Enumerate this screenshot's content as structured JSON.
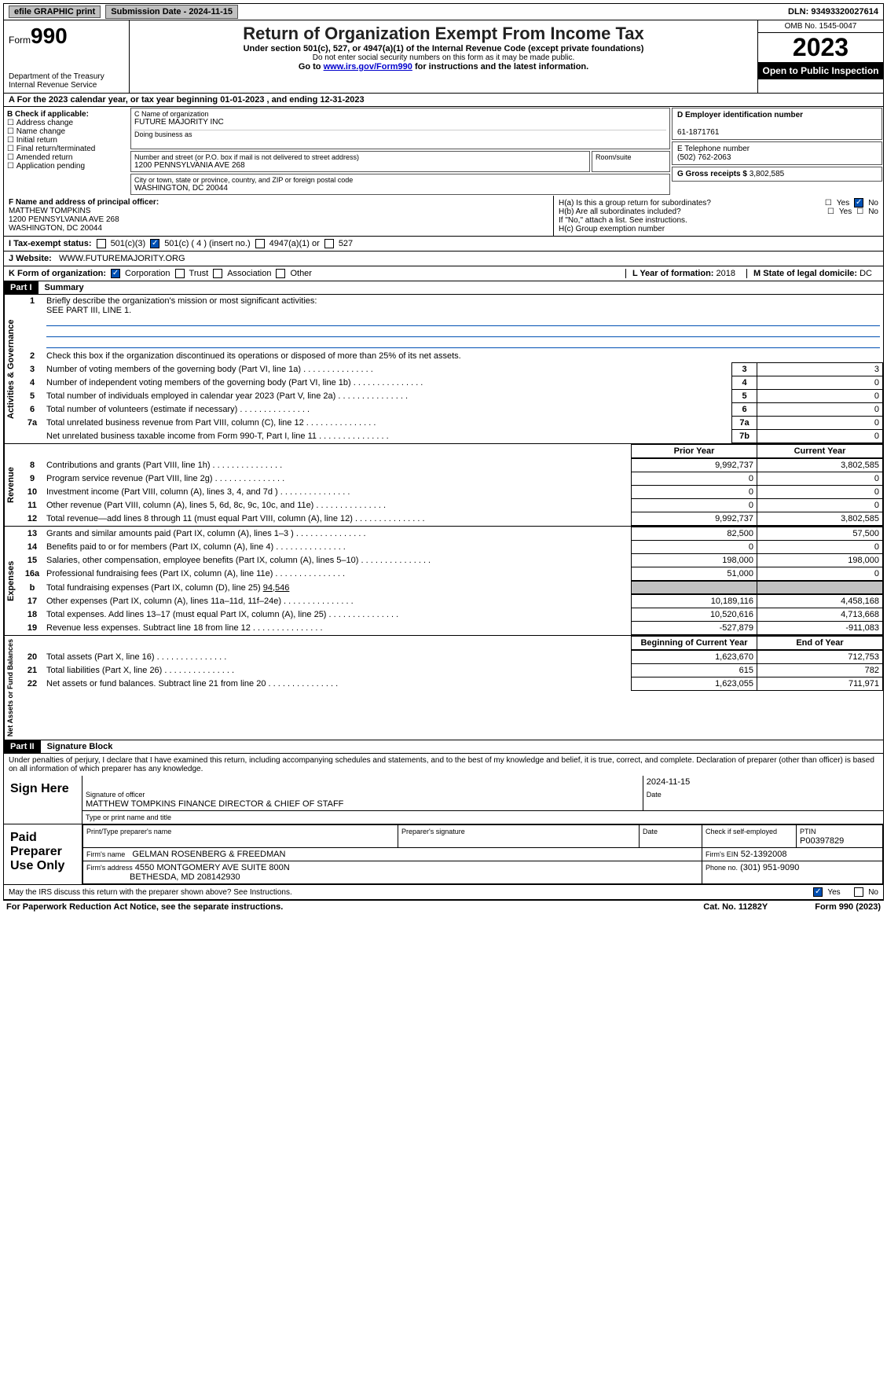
{
  "topbar": {
    "efile_label": "efile GRAPHIC print",
    "submission_label": "Submission Date - 2024-11-15",
    "dln_label": "DLN: 93493320027614"
  },
  "header": {
    "form_prefix": "Form",
    "form_number": "990",
    "dept": "Department of the Treasury Internal Revenue Service",
    "title": "Return of Organization Exempt From Income Tax",
    "subtitle": "Under section 501(c), 527, or 4947(a)(1) of the Internal Revenue Code (except private foundations)",
    "warn": "Do not enter social security numbers on this form as it may be made public.",
    "goto_prefix": "Go to ",
    "goto_link": "www.irs.gov/Form990",
    "goto_suffix": " for instructions and the latest information.",
    "omb": "OMB No. 1545-0047",
    "year": "2023",
    "openpub": "Open to Public Inspection"
  },
  "a_line": "A  For the 2023 calendar year, or tax year beginning 01-01-2023   , and ending 12-31-2023",
  "b": {
    "label": "B Check if applicable:",
    "items": [
      "Address change",
      "Name change",
      "Initial return",
      "Final return/terminated",
      "Amended return",
      "Application pending"
    ]
  },
  "c": {
    "name_lbl": "C Name of organization",
    "name": "FUTURE MAJORITY INC",
    "dba_lbl": "Doing business as",
    "street_lbl": "Number and street (or P.O. box if mail is not delivered to street address)",
    "room_lbl": "Room/suite",
    "street": "1200 PENNSYLVANIA AVE 268",
    "city_lbl": "City or town, state or province, country, and ZIP or foreign postal code",
    "city": "WASHINGTON, DC  20044"
  },
  "d": {
    "lbl": "D Employer identification number",
    "val": "61-1871761"
  },
  "e": {
    "lbl": "E Telephone number",
    "val": "(502) 762-2063"
  },
  "g": {
    "lbl": "G Gross receipts $",
    "val": "3,802,585"
  },
  "f": {
    "lbl": "F  Name and address of principal officer:",
    "lines": [
      "MATTHEW TOMPKINS",
      "1200 PENNSYLVANIA AVE 268",
      "WASHINGTON, DC  20044"
    ]
  },
  "h": {
    "a_lbl": "H(a)  Is this a group return for subordinates?",
    "b_lbl": "H(b)  Are all subordinates included?",
    "note": "If \"No,\" attach a list. See instructions.",
    "c_lbl": "H(c)  Group exemption number",
    "yes": "Yes",
    "no": "No"
  },
  "i": {
    "lbl": "I   Tax-exempt status:",
    "opts": [
      "501(c)(3)",
      "501(c) ( 4 ) (insert no.)",
      "4947(a)(1) or",
      "527"
    ]
  },
  "j": {
    "lbl": "J   Website:",
    "val": "WWW.FUTUREMAJORITY.ORG"
  },
  "k": {
    "lbl": "K Form of organization:",
    "opts": [
      "Corporation",
      "Trust",
      "Association",
      "Other"
    ]
  },
  "l": {
    "lbl": "L Year of formation:",
    "val": "2018"
  },
  "m": {
    "lbl": "M State of legal domicile:",
    "val": "DC"
  },
  "part1": {
    "hdr": "Part I",
    "title": "Summary",
    "line1_lbl": "Briefly describe the organization's mission or most significant activities:",
    "line1_val": "SEE PART III, LINE 1.",
    "line2": "Check this box      if the organization discontinued its operations or disposed of more than 25% of its net assets.",
    "gov_rows": [
      {
        "n": "3",
        "d": "Number of voting members of the governing body (Part VI, line 1a)",
        "box": "3",
        "v": "3"
      },
      {
        "n": "4",
        "d": "Number of independent voting members of the governing body (Part VI, line 1b)",
        "box": "4",
        "v": "0"
      },
      {
        "n": "5",
        "d": "Total number of individuals employed in calendar year 2023 (Part V, line 2a)",
        "box": "5",
        "v": "0"
      },
      {
        "n": "6",
        "d": "Total number of volunteers (estimate if necessary)",
        "box": "6",
        "v": "0"
      },
      {
        "n": "7a",
        "d": "Total unrelated business revenue from Part VIII, column (C), line 12",
        "box": "7a",
        "v": "0"
      },
      {
        "n": "",
        "d": "Net unrelated business taxable income from Form 990-T, Part I, line 11",
        "box": "7b",
        "v": "0"
      }
    ],
    "col_prior": "Prior Year",
    "col_current": "Current Year",
    "rev_rows": [
      {
        "n": "8",
        "d": "Contributions and grants (Part VIII, line 1h)",
        "p": "9,992,737",
        "c": "3,802,585"
      },
      {
        "n": "9",
        "d": "Program service revenue (Part VIII, line 2g)",
        "p": "0",
        "c": "0"
      },
      {
        "n": "10",
        "d": "Investment income (Part VIII, column (A), lines 3, 4, and 7d )",
        "p": "0",
        "c": "0"
      },
      {
        "n": "11",
        "d": "Other revenue (Part VIII, column (A), lines 5, 6d, 8c, 9c, 10c, and 11e)",
        "p": "0",
        "c": "0"
      },
      {
        "n": "12",
        "d": "Total revenue—add lines 8 through 11 (must equal Part VIII, column (A), line 12)",
        "p": "9,992,737",
        "c": "3,802,585"
      }
    ],
    "exp_rows": [
      {
        "n": "13",
        "d": "Grants and similar amounts paid (Part IX, column (A), lines 1–3 )",
        "p": "82,500",
        "c": "57,500"
      },
      {
        "n": "14",
        "d": "Benefits paid to or for members (Part IX, column (A), line 4)",
        "p": "0",
        "c": "0"
      },
      {
        "n": "15",
        "d": "Salaries, other compensation, employee benefits (Part IX, column (A), lines 5–10)",
        "p": "198,000",
        "c": "198,000"
      },
      {
        "n": "16a",
        "d": "Professional fundraising fees (Part IX, column (A), line 11e)",
        "p": "51,000",
        "c": "0"
      }
    ],
    "exp_b": {
      "n": "b",
      "d": "Total fundraising expenses (Part IX, column (D), line 25)",
      "v": "94,546"
    },
    "exp_rows2": [
      {
        "n": "17",
        "d": "Other expenses (Part IX, column (A), lines 11a–11d, 11f–24e)",
        "p": "10,189,116",
        "c": "4,458,168"
      },
      {
        "n": "18",
        "d": "Total expenses. Add lines 13–17 (must equal Part IX, column (A), line 25)",
        "p": "10,520,616",
        "c": "4,713,668"
      },
      {
        "n": "19",
        "d": "Revenue less expenses. Subtract line 18 from line 12",
        "p": "-527,879",
        "c": "-911,083"
      }
    ],
    "col_begin": "Beginning of Current Year",
    "col_end": "End of Year",
    "na_rows": [
      {
        "n": "20",
        "d": "Total assets (Part X, line 16)",
        "p": "1,623,670",
        "c": "712,753"
      },
      {
        "n": "21",
        "d": "Total liabilities (Part X, line 26)",
        "p": "615",
        "c": "782"
      },
      {
        "n": "22",
        "d": "Net assets or fund balances. Subtract line 21 from line 20",
        "p": "1,623,055",
        "c": "711,971"
      }
    ],
    "sec_gov": "Activities & Governance",
    "sec_rev": "Revenue",
    "sec_exp": "Expenses",
    "sec_na": "Net Assets or Fund Balances"
  },
  "part2": {
    "hdr": "Part II",
    "title": "Signature Block",
    "decl": "Under penalties of perjury, I declare that I have examined this return, including accompanying schedules and statements, and to the best of my knowledge and belief, it is true, correct, and complete. Declaration of preparer (other than officer) is based on all information of which preparer has any knowledge.",
    "sign_here": "Sign Here",
    "sig_date": "2024-11-15",
    "sig_officer_lbl": "Signature of officer",
    "sig_officer": "MATTHEW TOMPKINS  FINANCE DIRECTOR & CHIEF OF STAFF",
    "type_lbl": "Type or print name and title",
    "date_lbl": "Date",
    "paid": "Paid Preparer Use Only",
    "prep_name_lbl": "Print/Type preparer's name",
    "prep_sig_lbl": "Preparer's signature",
    "check_lbl": "Check       if self-employed",
    "ptin_lbl": "PTIN",
    "ptin": "P00397829",
    "firm_name_lbl": "Firm's name",
    "firm_name": "GELMAN ROSENBERG & FREEDMAN",
    "firm_ein_lbl": "Firm's EIN",
    "firm_ein": "52-1392008",
    "firm_addr_lbl": "Firm's address",
    "firm_addr": "4550 MONTGOMERY AVE SUITE 800N",
    "firm_city": "BETHESDA, MD  208142930",
    "phone_lbl": "Phone no.",
    "phone": "(301) 951-9090",
    "discuss": "May the IRS discuss this return with the preparer shown above? See Instructions.",
    "yes": "Yes",
    "no": "No"
  },
  "footer": {
    "pra": "For Paperwork Reduction Act Notice, see the separate instructions.",
    "cat": "Cat. No. 11282Y",
    "form": "Form 990 (2023)"
  }
}
